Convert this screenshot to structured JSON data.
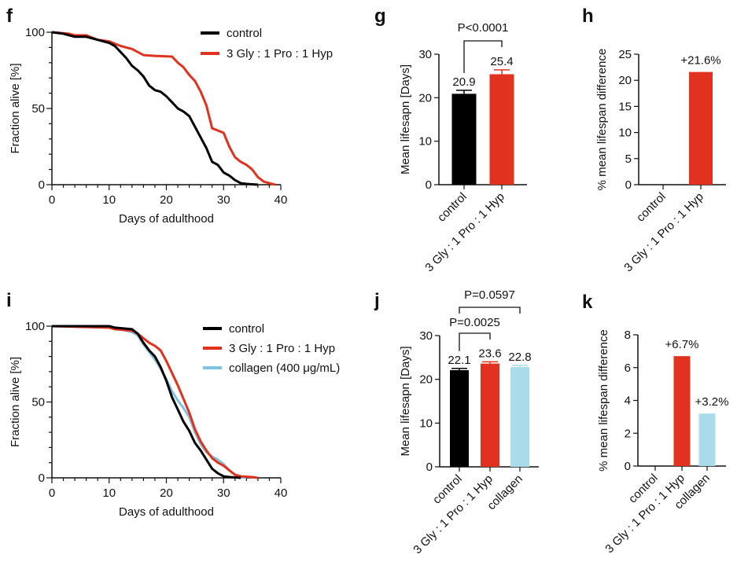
{
  "colors": {
    "control": "#000000",
    "gpp": "#e0321e",
    "collagen": "#a8dcea",
    "collagen_line": "#7ec3df"
  },
  "chart_data": [
    {
      "panel": "f",
      "type": "line",
      "xlabel": "Days of adulthood",
      "ylabel": "Fraction alive [%]",
      "xlim": [
        0,
        40
      ],
      "ylim": [
        0,
        100
      ],
      "xticks": [
        0,
        10,
        20,
        30,
        40
      ],
      "yticks": [
        0,
        50,
        100
      ],
      "grid": false,
      "legend": "top-right",
      "series": [
        {
          "name": "control",
          "color": "#000000",
          "x": [
            0,
            2,
            4,
            6,
            8,
            10,
            11,
            12,
            13,
            14,
            15,
            16,
            17,
            18,
            19,
            20,
            21,
            22,
            23,
            24,
            25,
            26,
            27,
            28,
            29,
            30,
            31,
            32,
            33,
            34,
            36
          ],
          "y": [
            100,
            99,
            97,
            97,
            95,
            93,
            91,
            87,
            83,
            78,
            75,
            71,
            65,
            62,
            61,
            58,
            54,
            50,
            48,
            45,
            38,
            31,
            24,
            15,
            13,
            8,
            6,
            3,
            1,
            0.5,
            0
          ]
        },
        {
          "name": "3 Gly : 1 Pro : 1 Hyp",
          "color": "#e0321e",
          "x": [
            0,
            3,
            4,
            6,
            8,
            10,
            12,
            14,
            15,
            16,
            18,
            21,
            22,
            23,
            24,
            25,
            26,
            27,
            28,
            30,
            31,
            32,
            33,
            34,
            35,
            36,
            37,
            38,
            39
          ],
          "y": [
            100,
            99,
            98,
            98,
            95,
            94,
            91,
            89,
            87,
            85,
            84.5,
            84,
            80,
            77,
            72,
            68,
            61,
            52,
            37,
            34,
            25,
            18,
            15,
            13,
            10,
            5,
            2,
            1,
            0
          ]
        }
      ]
    },
    {
      "panel": "g",
      "type": "bar",
      "ylabel": "Mean lifesapn [Days]",
      "ylim": [
        0,
        30
      ],
      "yticks": [
        0,
        10,
        20,
        30
      ],
      "categories": [
        "control",
        "3 Gly : 1 Pro : 1 Hyp"
      ],
      "values": [
        20.9,
        25.4
      ],
      "errors": [
        0.8,
        1.0
      ],
      "value_labels": [
        "20.9",
        "25.4"
      ],
      "colors": [
        "#000000",
        "#e0321e"
      ],
      "comparisons": [
        {
          "from": 0,
          "to": 1,
          "label": "P<0.0001"
        }
      ]
    },
    {
      "panel": "h",
      "type": "bar",
      "ylabel": "% mean lifespan difference",
      "ylim": [
        0,
        25
      ],
      "yticks": [
        0,
        5,
        10,
        15,
        20,
        25
      ],
      "categories": [
        "control",
        "3 Gly : 1 Pro : 1 Hyp"
      ],
      "values": [
        0,
        21.6
      ],
      "value_labels": [
        "",
        "+21.6%"
      ],
      "colors": [
        "#000000",
        "#e0321e"
      ]
    },
    {
      "panel": "i",
      "type": "line",
      "xlabel": "Days of adulthood",
      "ylabel": "Fraction alive [%]",
      "xlim": [
        0,
        40
      ],
      "ylim": [
        0,
        100
      ],
      "xticks": [
        0,
        10,
        20,
        30,
        40
      ],
      "yticks": [
        0,
        50,
        100
      ],
      "grid": false,
      "legend": "top-right",
      "series": [
        {
          "name": "control",
          "color": "#000000",
          "x": [
            0,
            10,
            11,
            14,
            15,
            16,
            17,
            18,
            19,
            20,
            21,
            22,
            23,
            24,
            25,
            26,
            27,
            28,
            29,
            30,
            31,
            33
          ],
          "y": [
            100,
            100,
            99,
            98,
            95,
            89,
            84,
            80,
            73,
            64,
            53,
            45,
            37,
            31,
            23,
            18,
            12,
            6,
            3,
            1,
            0.5,
            0
          ]
        },
        {
          "name": "3 Gly : 1 Pro : 1 Hyp",
          "color": "#e0321e",
          "x": [
            0,
            10,
            11,
            14,
            15,
            16,
            17,
            18,
            19,
            20,
            21,
            22,
            23,
            24,
            25,
            26,
            27,
            28,
            29,
            30,
            31,
            32,
            33,
            35,
            36
          ],
          "y": [
            100,
            99,
            98,
            97,
            95,
            92,
            89,
            87,
            84,
            77,
            69,
            61,
            52,
            43,
            32,
            24,
            18,
            13,
            10,
            8,
            5,
            2,
            1,
            0.5,
            0
          ]
        },
        {
          "name": "collagen (400 μg/mL)",
          "color": "#7ec3df",
          "x": [
            0,
            10,
            14,
            15,
            16,
            17,
            18,
            19,
            20,
            21,
            22,
            23,
            24,
            25,
            26,
            27,
            28,
            29,
            30,
            31,
            32,
            33,
            34
          ],
          "y": [
            100,
            100,
            96,
            94,
            88,
            83,
            78,
            72,
            65,
            57,
            51,
            46,
            40,
            30,
            22,
            17,
            14,
            12,
            9,
            5,
            2,
            0.5,
            0
          ]
        }
      ]
    },
    {
      "panel": "j",
      "type": "bar",
      "ylabel": "Mean lifesapn [Days]",
      "ylim": [
        0,
        30
      ],
      "yticks": [
        0,
        10,
        20,
        30
      ],
      "categories": [
        "control",
        "3 Gly : 1 Pro : 1 Hyp",
        "collagen"
      ],
      "values": [
        22.1,
        23.6,
        22.8
      ],
      "errors": [
        0.4,
        0.4,
        0.4
      ],
      "value_labels": [
        "22.1",
        "23.6",
        "22.8"
      ],
      "colors": [
        "#000000",
        "#e0321e",
        "#a8dcea"
      ],
      "comparisons": [
        {
          "from": 0,
          "to": 1,
          "label": "P=0.0025"
        },
        {
          "from": 0,
          "to": 2,
          "label": "P=0.0597"
        }
      ]
    },
    {
      "panel": "k",
      "type": "bar",
      "ylabel": "% mean lifespan difference",
      "ylim": [
        0,
        8
      ],
      "yticks": [
        0,
        2,
        4,
        6,
        8
      ],
      "categories": [
        "control",
        "3 Gly : 1 Pro : 1 Hyp",
        "collagen"
      ],
      "values": [
        0,
        6.7,
        3.2
      ],
      "value_labels": [
        "",
        "+6.7%",
        "+3.2%"
      ],
      "colors": [
        "#000000",
        "#e0321e",
        "#a8dcea"
      ]
    }
  ]
}
